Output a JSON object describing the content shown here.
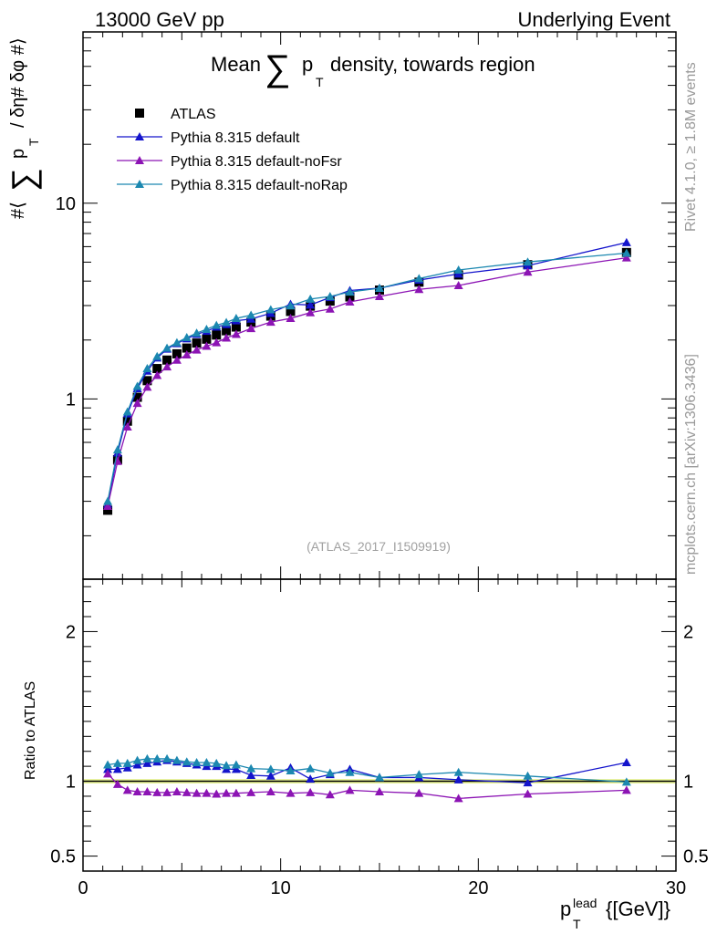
{
  "header": {
    "left": "13000 GeV pp",
    "right": "Underlying Event"
  },
  "side_text": {
    "rivet": "Rivet 4.1.0, ≥ 1.8M events",
    "mcplots": "mcplots.cern.ch [arXiv:1306.3436]"
  },
  "chart_data": {
    "type": "line",
    "title_prefix": "Mean",
    "title_sub": "T",
    "title_suffix": "density, towards region",
    "analysis_label": "(ATLAS_2017_I1509919)",
    "ylabel": {
      "prefix": "#⟨",
      "p": "p",
      "sub": "T",
      "suffix": "/ δη# δφ #⟩"
    },
    "xlabel": {
      "p": "p",
      "sub": "T",
      "sup": "lead",
      "unit": "{[GeV]}"
    },
    "ratio_ylabel": "Ratio to ATLAS",
    "xlim": [
      0,
      30
    ],
    "ylim_log": [
      0.12,
      75
    ],
    "ratio_ylim": [
      0.4,
      2.35
    ],
    "x_ticks": [
      "0",
      "10",
      "20",
      "30"
    ],
    "y_ticks": [
      "1",
      "10"
    ],
    "ratio_ticks": [
      "0.5",
      "1",
      "2"
    ],
    "x": [
      1.25,
      1.75,
      2.25,
      2.75,
      3.25,
      3.75,
      4.25,
      4.75,
      5.25,
      5.75,
      6.25,
      6.75,
      7.25,
      7.75,
      8.5,
      9.5,
      10.5,
      11.5,
      12.5,
      13.5,
      15,
      17,
      19,
      22.5,
      27.5
    ],
    "series": [
      {
        "name": "ATLAS",
        "color": "#000000",
        "marker": "square",
        "values": [
          0.27,
          0.49,
          0.77,
          1.02,
          1.24,
          1.43,
          1.58,
          1.7,
          1.82,
          1.93,
          2.02,
          2.12,
          2.23,
          2.33,
          2.47,
          2.65,
          2.8,
          2.98,
          3.16,
          3.32,
          3.6,
          3.95,
          4.3,
          4.85,
          5.6
        ]
      },
      {
        "name": "Pythia 8.315 default",
        "color": "#1414cc",
        "marker": "triangle",
        "values": [
          0.29,
          0.53,
          0.84,
          1.13,
          1.39,
          1.62,
          1.8,
          1.92,
          2.03,
          2.14,
          2.22,
          2.33,
          2.4,
          2.51,
          2.56,
          2.74,
          3.05,
          3.02,
          3.3,
          3.58,
          3.68,
          4.05,
          4.35,
          4.8,
          6.3
        ]
      },
      {
        "name": "Pythia 8.315 default-noFsr",
        "color": "#8c14b4",
        "marker": "triangle",
        "values": [
          0.283,
          0.48,
          0.72,
          0.95,
          1.15,
          1.32,
          1.46,
          1.58,
          1.68,
          1.78,
          1.86,
          1.94,
          2.05,
          2.14,
          2.29,
          2.47,
          2.58,
          2.76,
          2.88,
          3.13,
          3.34,
          3.63,
          3.8,
          4.45,
          5.26
        ]
      },
      {
        "name": "Pythia 8.315 default-noRap",
        "color": "#1c88b0",
        "marker": "triangle",
        "values": [
          0.3,
          0.55,
          0.86,
          1.16,
          1.43,
          1.65,
          1.82,
          1.94,
          2.06,
          2.17,
          2.27,
          2.38,
          2.46,
          2.58,
          2.68,
          2.86,
          2.99,
          3.24,
          3.34,
          3.52,
          3.68,
          4.12,
          4.56,
          5.01,
          5.56
        ]
      }
    ],
    "ratios": [
      [
        1.0,
        1.0,
        1.0,
        1.0,
        1.0,
        1.0,
        1.0,
        1.0,
        1.0,
        1.0,
        1.0,
        1.0,
        1.0,
        1.0,
        1.0,
        1.0,
        1.0,
        1.0,
        1.0,
        1.0,
        1.0,
        1.0,
        1.0,
        1.0,
        1.0
      ],
      [
        1.08,
        1.08,
        1.09,
        1.11,
        1.12,
        1.13,
        1.14,
        1.13,
        1.12,
        1.11,
        1.1,
        1.1,
        1.08,
        1.08,
        1.04,
        1.035,
        1.09,
        1.015,
        1.045,
        1.08,
        1.025,
        1.025,
        1.01,
        0.99,
        1.125
      ],
      [
        1.05,
        0.98,
        0.94,
        0.93,
        0.93,
        0.925,
        0.925,
        0.93,
        0.925,
        0.92,
        0.92,
        0.915,
        0.92,
        0.92,
        0.925,
        0.93,
        0.92,
        0.925,
        0.91,
        0.94,
        0.93,
        0.92,
        0.885,
        0.915,
        0.94
      ],
      [
        1.11,
        1.12,
        1.12,
        1.14,
        1.15,
        1.15,
        1.15,
        1.14,
        1.13,
        1.125,
        1.125,
        1.12,
        1.105,
        1.11,
        1.085,
        1.08,
        1.07,
        1.085,
        1.055,
        1.06,
        1.025,
        1.045,
        1.06,
        1.035,
        0.995
      ]
    ]
  }
}
